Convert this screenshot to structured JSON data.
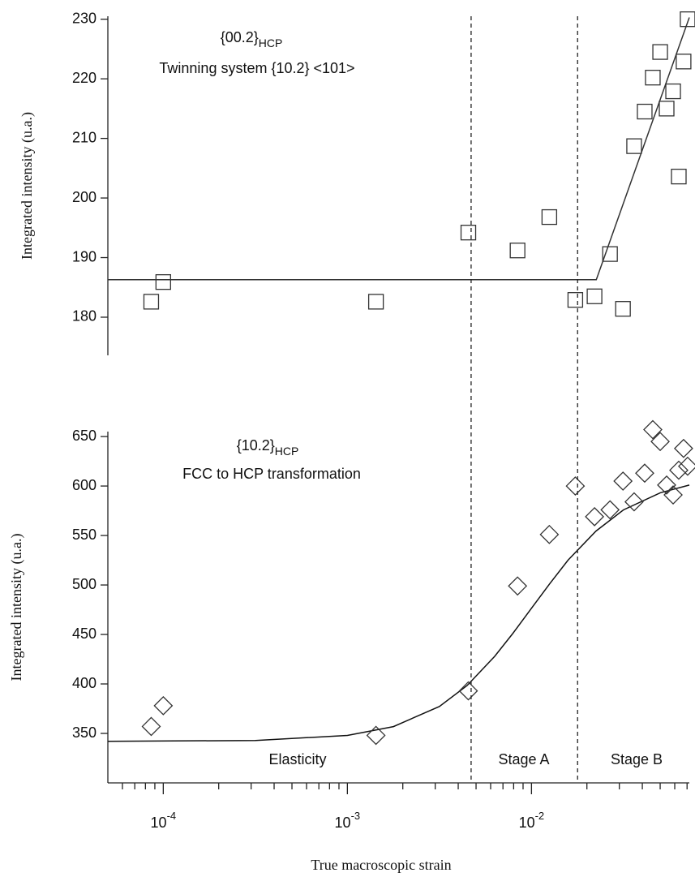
{
  "chart_data": [
    {
      "type": "scatter",
      "title": "{00.2}",
      "title_sub": "HCP",
      "subtitle": "Twinning system {10.2} <101>",
      "ylabel": "Integrated intensity (u.a.)",
      "xscale": "log",
      "xlim": [
        5e-05,
        0.072
      ],
      "ylim": [
        173.6,
        230.5
      ],
      "yticks": [
        180,
        190,
        200,
        210,
        220,
        230
      ],
      "series": [
        {
          "marker": "square",
          "color": "#333333",
          "x": [
            8.6e-05,
            0.0001,
            0.00143,
            0.00454,
            0.0084,
            0.0125,
            0.0173,
            0.022,
            0.0267,
            0.0314,
            0.0361,
            0.0412,
            0.0456,
            0.05,
            0.0542,
            0.0588,
            0.0631,
            0.067,
            0.0705
          ],
          "values": [
            182.6,
            185.9,
            182.6,
            194.2,
            191.2,
            196.8,
            182.9,
            183.5,
            190.6,
            181.4,
            208.7,
            214.5,
            220.2,
            224.5,
            215.0,
            217.9,
            203.6,
            222.9,
            230.0
          ]
        }
      ],
      "fit": {
        "color": "#333333",
        "x": [
          5e-05,
          0.0225,
          0.072
        ],
        "values": [
          186.3,
          186.3,
          230.3
        ]
      }
    },
    {
      "type": "scatter",
      "title": "{10.2}",
      "title_sub": "HCP",
      "subtitle": "FCC to HCP transformation",
      "ylabel": "Integrated intensity (u.a.)",
      "xlabel": "True macroscopic strain",
      "xscale": "log",
      "xlim": [
        5e-05,
        0.072
      ],
      "ylim": [
        300,
        655
      ],
      "yticks": [
        350,
        400,
        450,
        500,
        550,
        600,
        650
      ],
      "xticks": [
        {
          "value": 0.0001,
          "label": "10",
          "exp": "-4"
        },
        {
          "value": 0.001,
          "label": "10",
          "exp": "-3"
        },
        {
          "value": 0.01,
          "label": "10",
          "exp": "-2"
        }
      ],
      "xminor": [
        6e-05,
        7e-05,
        8e-05,
        9e-05,
        0.0002,
        0.0003,
        0.0004,
        0.0005,
        0.0006,
        0.0007,
        0.0008,
        0.0009,
        0.002,
        0.003,
        0.004,
        0.005,
        0.006,
        0.007,
        0.008,
        0.009,
        0.02,
        0.03,
        0.04,
        0.05,
        0.06,
        0.07
      ],
      "series": [
        {
          "marker": "diamond",
          "color": "#333333",
          "x": [
            8.6e-05,
            0.0001,
            0.00143,
            0.00454,
            0.0084,
            0.0125,
            0.0173,
            0.022,
            0.0267,
            0.0314,
            0.0361,
            0.0412,
            0.0456,
            0.05,
            0.0542,
            0.0588,
            0.0631,
            0.067,
            0.0705
          ],
          "values": [
            357,
            378,
            348,
            393,
            499,
            551,
            600,
            569,
            576,
            605,
            584,
            613,
            657,
            645,
            601,
            591,
            616,
            638,
            620
          ]
        }
      ],
      "fit": {
        "color": "#111111",
        "x": [
          5.01e-05,
          0.000316,
          0.001,
          0.00178,
          0.00316,
          0.00447,
          0.00631,
          0.00794,
          0.01,
          0.0126,
          0.0158,
          0.0224,
          0.0316,
          0.0501,
          0.072
        ],
        "values": [
          342.0,
          342.9,
          348.0,
          356.9,
          377.2,
          398.4,
          427.9,
          451.3,
          476.5,
          501.6,
          525.1,
          554.5,
          575.9,
          593.2,
          601.0
        ]
      },
      "vlines": [
        0.0047,
        0.0178
      ],
      "annotations": [
        "Elasticity",
        "Stage A",
        "Stage B"
      ]
    }
  ]
}
